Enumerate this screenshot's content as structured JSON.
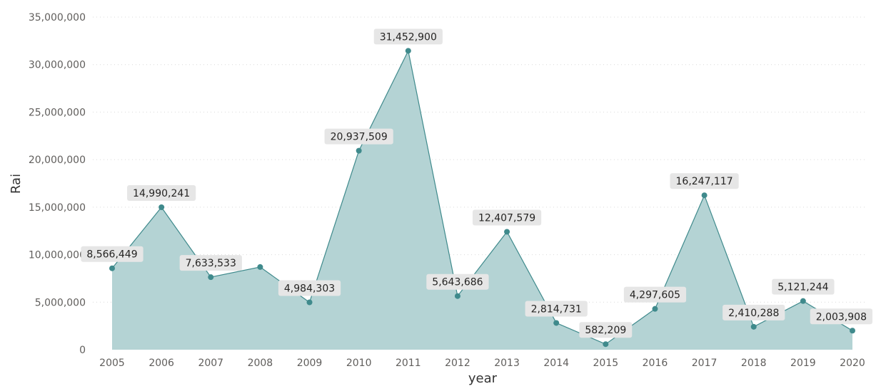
{
  "chart_data": {
    "type": "area",
    "title": "",
    "xlabel": "year",
    "ylabel": "Rai",
    "x": [
      "2005",
      "2006",
      "2007",
      "2008",
      "2009",
      "2010",
      "2011",
      "2012",
      "2013",
      "2014",
      "2015",
      "2016",
      "2017",
      "2018",
      "2019",
      "2020"
    ],
    "series": [
      {
        "values": [
          8566449,
          14990241,
          7633533,
          8700000,
          4984303,
          20937509,
          31452900,
          5643686,
          12407579,
          2814731,
          582209,
          4297605,
          16247117,
          2410288,
          5121244,
          2003908
        ],
        "labels": [
          "8,566,449",
          "14,990,241",
          "7,633,533",
          null,
          "4,984,303",
          "20,937,509",
          "31,452,900",
          "5,643,686",
          "12,407,579",
          "2,814,731",
          "582,209",
          "4,297,605",
          "16,247,117",
          "2,410,288",
          "5,121,244",
          "2,003,908"
        ]
      }
    ],
    "ylim": [
      0,
      35000000
    ],
    "yticks": [
      0,
      5000000,
      10000000,
      15000000,
      20000000,
      25000000,
      30000000,
      35000000
    ],
    "ytick_labels": [
      "0",
      "5,000,000",
      "10,000,000",
      "15,000,000",
      "20,000,000",
      "25,000,000",
      "30,000,000",
      "35,000,000"
    ],
    "grid": true,
    "colors": {
      "line": "#3f8a8c",
      "fill": "#b4d3d4",
      "marker": "#3f8a8c",
      "label_bg": "#e6e6e6"
    }
  }
}
